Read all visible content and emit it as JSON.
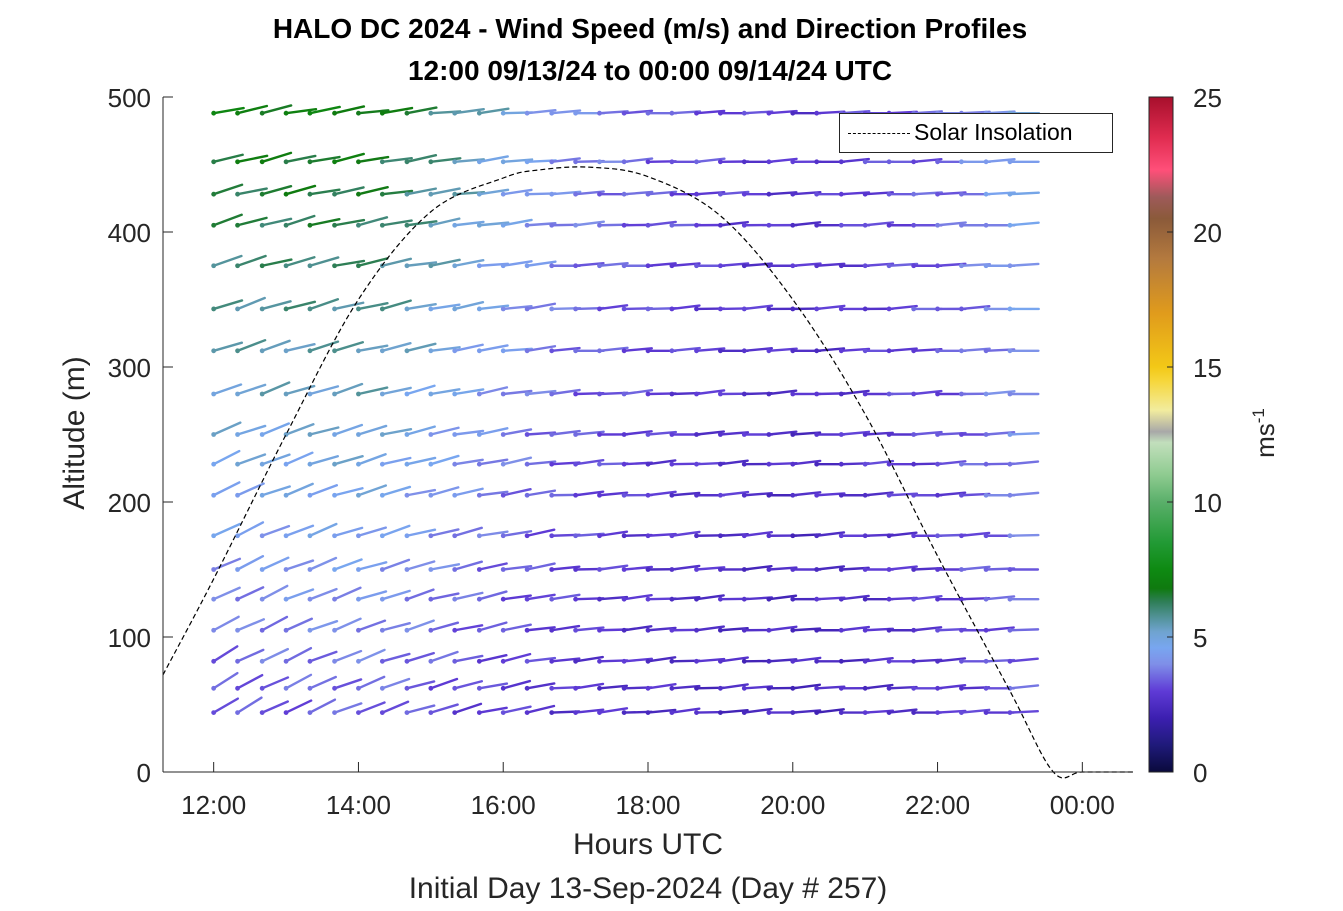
{
  "chart_data": {
    "type": "quiver",
    "title": "HALO DC 2024 - Wind Speed (m/s) and Direction Profiles",
    "subtitle": "12:00 09/13/24 to 00:00 09/14/24  UTC",
    "xlabel": "Hours UTC",
    "ylabel": "Altitude (m)",
    "note": "Initial Day 13-Sep-2024 (Day # 257)",
    "xlim_hours": [
      11.3,
      24.7
    ],
    "ylim": [
      0,
      500
    ],
    "x_ticks": [
      12,
      14,
      16,
      18,
      20,
      22,
      24
    ],
    "x_tick_labels": [
      "12:00",
      "14:00",
      "16:00",
      "18:00",
      "20:00",
      "22:00",
      "00:00"
    ],
    "y_ticks": [
      0,
      100,
      200,
      300,
      400,
      500
    ],
    "y_tick_labels": [
      "0",
      "100",
      "200",
      "300",
      "400",
      "500"
    ],
    "colorbar": {
      "label": "ms",
      "label_exponent": "-1",
      "range": [
        0,
        25
      ],
      "ticks": [
        0,
        5,
        10,
        15,
        20,
        25
      ],
      "tick_labels": [
        "0",
        "5",
        "10",
        "15",
        "20",
        "25"
      ]
    },
    "legend": {
      "entries": [
        "Solar Insolation"
      ],
      "position": "top-right"
    },
    "solar_insolation": {
      "x": [
        11.3,
        12.0,
        13.0,
        14.0,
        15.0,
        16.0,
        16.5,
        17.2,
        18.0,
        19.0,
        20.0,
        21.0,
        22.0,
        23.0,
        23.6,
        24.0,
        24.7
      ],
      "y": [
        72,
        143,
        250,
        350,
        415,
        440,
        446,
        448,
        441,
        412,
        350,
        265,
        160,
        60,
        0,
        0,
        0
      ]
    },
    "wind_profiles": {
      "times_hours": [
        12.0,
        12.33,
        12.67,
        13.0,
        13.33,
        13.67,
        14.0,
        14.33,
        14.67,
        15.0,
        15.33,
        15.67,
        16.0,
        16.33,
        16.67,
        17.0,
        17.33,
        17.67,
        18.0,
        18.33,
        18.67,
        19.0,
        19.33,
        19.67,
        20.0,
        20.33,
        20.67,
        21.0,
        21.33,
        21.67,
        22.0,
        22.33,
        22.67,
        23.0
      ],
      "altitudes_m": [
        44,
        62,
        82,
        105,
        128,
        150,
        175,
        205,
        228,
        250,
        280,
        312,
        343,
        375,
        405,
        428,
        452,
        488
      ],
      "speed_by_hour": [
        {
          "hour": 12.0,
          "speed_low": 3.2,
          "speed_high": 7.0
        },
        {
          "hour": 14.0,
          "speed_low": 3.5,
          "speed_high": 7.0
        },
        {
          "hour": 15.5,
          "speed_low": 3.0,
          "speed_high": 5.5
        },
        {
          "hour": 16.5,
          "speed_low": 2.8,
          "speed_high": 4.2
        },
        {
          "hour": 18.0,
          "speed_low": 2.6,
          "speed_high": 3.4
        },
        {
          "hour": 20.0,
          "speed_low": 2.4,
          "speed_high": 2.8
        },
        {
          "hour": 22.0,
          "speed_low": 2.8,
          "speed_high": 3.6
        },
        {
          "hour": 23.0,
          "speed_low": 3.3,
          "speed_high": 4.8
        }
      ],
      "direction_note": "Early hours: winds from the west-southwest with barbs tilted upward to the east; later hours nearly horizontal, from the west"
    },
    "colors": {
      "curve": "#000000",
      "axes": "#262626",
      "speed_scale": [
        [
          0,
          "#0a0a3c"
        ],
        [
          1,
          "#1f1a7a"
        ],
        [
          2,
          "#3c1fb0"
        ],
        [
          3,
          "#5f3bd6"
        ],
        [
          4,
          "#7f8fe8"
        ],
        [
          4.6,
          "#78a6f0"
        ],
        [
          5.2,
          "#6fa3cf"
        ],
        [
          5.8,
          "#4e9090"
        ],
        [
          6.3,
          "#2f7e58"
        ],
        [
          6.8,
          "#0f7a0f"
        ],
        [
          7.5,
          "#0e8a12"
        ],
        [
          8.5,
          "#229a35"
        ],
        [
          10,
          "#5aaf6a"
        ],
        [
          11,
          "#8ecb90"
        ],
        [
          12.2,
          "#c2dfbc"
        ],
        [
          12.6,
          "#a8a8a8"
        ],
        [
          13.4,
          "#f2ec9e"
        ],
        [
          14.5,
          "#f6d63a"
        ],
        [
          15,
          "#f3c817"
        ],
        [
          17,
          "#e09b1c"
        ],
        [
          19,
          "#b47a3e"
        ],
        [
          20.5,
          "#8b5a3a"
        ],
        [
          21.3,
          "#9e5a5a"
        ],
        [
          22.3,
          "#ff4f79"
        ],
        [
          23.5,
          "#e02c50"
        ],
        [
          25,
          "#a70f2c"
        ]
      ]
    }
  }
}
